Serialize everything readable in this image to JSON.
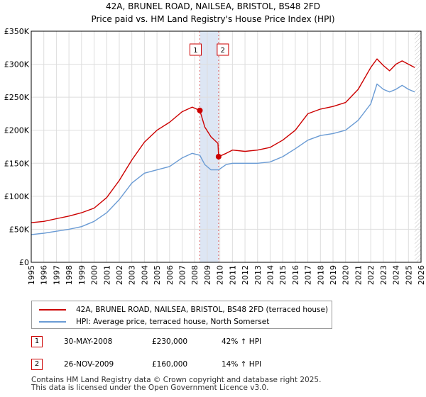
{
  "chart_data": {
    "type": "line",
    "title": "42A, BRUNEL ROAD, NAILSEA, BRISTOL, BS48 2FD",
    "subtitle": "Price paid vs. HM Land Registry's House Price Index (HPI)",
    "xlim": [
      1995,
      2026
    ],
    "ylim": [
      0,
      350000
    ],
    "x_ticks": [
      "1995",
      "1996",
      "1997",
      "1998",
      "1999",
      "2000",
      "2001",
      "2002",
      "2003",
      "2004",
      "2005",
      "2006",
      "2007",
      "2008",
      "2009",
      "2010",
      "2011",
      "2012",
      "2013",
      "2014",
      "2015",
      "2016",
      "2017",
      "2018",
      "2019",
      "2020",
      "2021",
      "2022",
      "2023",
      "2024",
      "2025",
      "2026"
    ],
    "y_ticks": [
      {
        "value": 0,
        "label": "£0"
      },
      {
        "value": 50000,
        "label": "£50K"
      },
      {
        "value": 100000,
        "label": "£100K"
      },
      {
        "value": 150000,
        "label": "£150K"
      },
      {
        "value": 200000,
        "label": "£200K"
      },
      {
        "value": 250000,
        "label": "£250K"
      },
      {
        "value": 300000,
        "label": "£300K"
      },
      {
        "value": 350000,
        "label": "£350K"
      }
    ],
    "grid": true,
    "highlight_span": [
      2008.41,
      2009.9
    ],
    "future_hatch_start": 2025.5,
    "series": [
      {
        "name": "42A, BRUNEL ROAD, NAILSEA, BRISTOL, BS48 2FD (terraced house)",
        "color": "#cc0000",
        "x": [
          1995,
          1996,
          1997,
          1998,
          1999,
          2000,
          2001,
          2002,
          2003,
          2004,
          2005,
          2006,
          2007,
          2007.8,
          2008.41,
          2008.8,
          2009.3,
          2009.85,
          2009.9,
          2010.5,
          2011,
          2012,
          2013,
          2014,
          2015,
          2016,
          2017,
          2018,
          2019,
          2020,
          2021,
          2022,
          2022.5,
          2023,
          2023.5,
          2024,
          2024.5,
          2025,
          2025.5
        ],
        "y": [
          60000,
          62000,
          66000,
          70000,
          75000,
          82000,
          98000,
          124000,
          155000,
          182000,
          200000,
          212000,
          228000,
          235000,
          230000,
          205000,
          190000,
          180000,
          160000,
          165000,
          170000,
          168000,
          170000,
          174000,
          185000,
          200000,
          225000,
          232000,
          236000,
          242000,
          262000,
          295000,
          308000,
          298000,
          290000,
          300000,
          305000,
          300000,
          295000
        ]
      },
      {
        "name": "HPI: Average price, terraced house, North Somerset",
        "color": "#6a9bd4",
        "x": [
          1995,
          1996,
          1997,
          1998,
          1999,
          2000,
          2001,
          2002,
          2003,
          2004,
          2005,
          2006,
          2007,
          2007.8,
          2008.41,
          2008.8,
          2009.3,
          2009.9,
          2010.5,
          2011,
          2012,
          2013,
          2014,
          2015,
          2016,
          2017,
          2018,
          2019,
          2020,
          2021,
          2022,
          2022.5,
          2023,
          2023.5,
          2024,
          2024.5,
          2025,
          2025.5
        ],
        "y": [
          42000,
          44000,
          47000,
          50000,
          54000,
          62000,
          75000,
          95000,
          120000,
          135000,
          140000,
          145000,
          158000,
          165000,
          162000,
          148000,
          140000,
          140000,
          148000,
          150000,
          150000,
          150000,
          152000,
          160000,
          172000,
          185000,
          192000,
          195000,
          200000,
          215000,
          240000,
          270000,
          262000,
          258000,
          262000,
          268000,
          262000,
          258000
        ]
      }
    ],
    "markers": [
      {
        "label": "1",
        "x": 2008.41,
        "y": 230000
      },
      {
        "label": "2",
        "x": 2009.9,
        "y": 160000
      }
    ]
  },
  "legend": {
    "items": [
      {
        "label": "42A, BRUNEL ROAD, NAILSEA, BRISTOL, BS48 2FD (terraced house)",
        "color": "#cc0000"
      },
      {
        "label": "HPI: Average price, terraced house, North Somerset",
        "color": "#6a9bd4"
      }
    ]
  },
  "transactions": [
    {
      "num": "1",
      "date": "30-MAY-2008",
      "price": "£230,000",
      "hpi": "42% ↑ HPI"
    },
    {
      "num": "2",
      "date": "26-NOV-2009",
      "price": "£160,000",
      "hpi": "14% ↑ HPI"
    }
  ],
  "footer": {
    "line1": "Contains HM Land Registry data © Crown copyright and database right 2025.",
    "line2": "This data is licensed under the Open Government Licence v3.0."
  }
}
